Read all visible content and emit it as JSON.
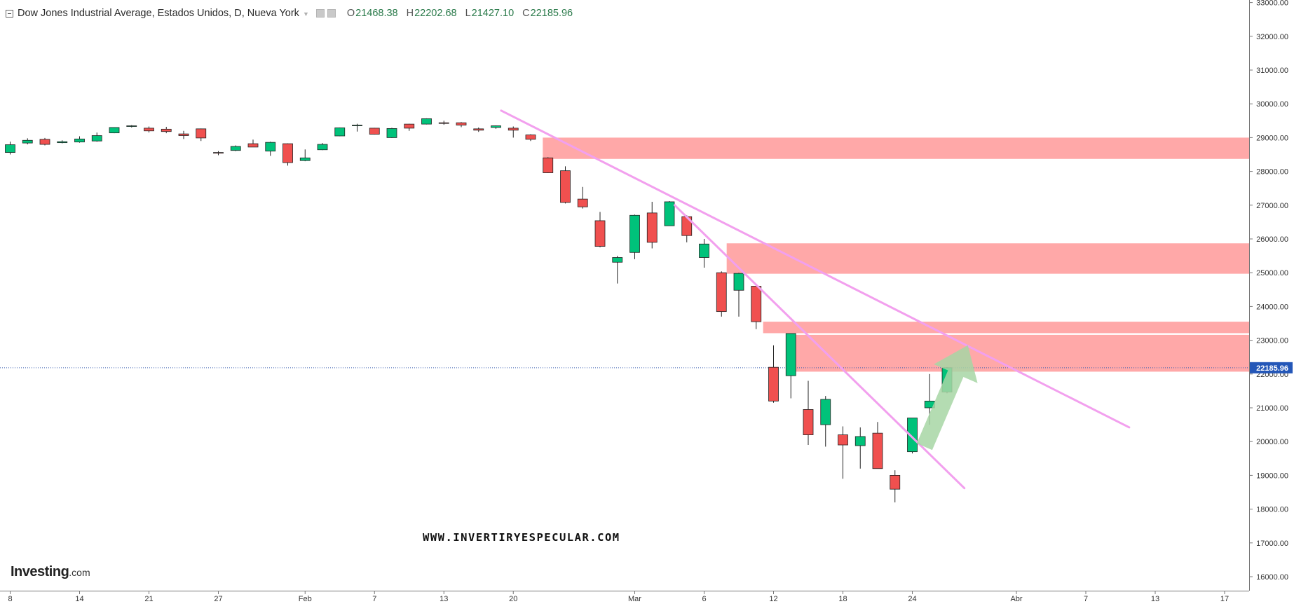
{
  "legend": {
    "title": "Dow Jones Industrial Average, Estados Unidos, D, Nueva York",
    "o_label": "O",
    "o_value": "21468.38",
    "h_label": "H",
    "h_value": "22202.68",
    "l_label": "L",
    "l_value": "21427.10",
    "c_label": "C",
    "c_value": "22185.96"
  },
  "watermark": "WWW.INVERTIRYESPECULAR.COM",
  "logo": {
    "main": "Investing",
    "sub": ".com"
  },
  "colors": {
    "up": "#00c27a",
    "down": "#f0504f",
    "zone": "#ffa8a8",
    "trendline": "#f2a0ee",
    "arrow": "#a7d6a4",
    "price_tag": "#2457b8",
    "price_line": "#3a5fb0"
  },
  "chart_data": {
    "type": "candlestick",
    "y_axis": {
      "min": 15700,
      "max": 33050,
      "position": "right",
      "ticks": [
        "16000.00",
        "17000.00",
        "18000.00",
        "19000.00",
        "20000.00",
        "21000.00",
        "22000.00",
        "23000.00",
        "24000.00",
        "25000.00",
        "26000.00",
        "27000.00",
        "28000.00",
        "29000.00",
        "30000.00",
        "31000.00",
        "32000.00",
        "33000.00"
      ]
    },
    "x_axis": {
      "labels": [
        {
          "label": "8",
          "bar": 0
        },
        {
          "label": "14",
          "bar": 4
        },
        {
          "label": "21",
          "bar": 8
        },
        {
          "label": "27",
          "bar": 12
        },
        {
          "label": "Feb",
          "bar": 17
        },
        {
          "label": "7",
          "bar": 21
        },
        {
          "label": "13",
          "bar": 25
        },
        {
          "label": "20",
          "bar": 29
        },
        {
          "label": "Mar",
          "bar": 36
        },
        {
          "label": "6",
          "bar": 40
        },
        {
          "label": "12",
          "bar": 44
        },
        {
          "label": "18",
          "bar": 48
        },
        {
          "label": "24",
          "bar": 52
        },
        {
          "label": "Abr",
          "bar": 58
        },
        {
          "label": "7",
          "bar": 62
        },
        {
          "label": "13",
          "bar": 66
        },
        {
          "label": "17",
          "bar": 70
        }
      ]
    },
    "candles": [
      {
        "o": 28560,
        "h": 28880,
        "l": 28500,
        "c": 28790
      },
      {
        "o": 28840,
        "h": 28980,
        "l": 28800,
        "c": 28920
      },
      {
        "o": 28950,
        "h": 28990,
        "l": 28770,
        "c": 28800
      },
      {
        "o": 28850,
        "h": 28920,
        "l": 28830,
        "c": 28880
      },
      {
        "o": 28870,
        "h": 29040,
        "l": 28850,
        "c": 28960
      },
      {
        "o": 28900,
        "h": 29150,
        "l": 28880,
        "c": 29060
      },
      {
        "o": 29140,
        "h": 29310,
        "l": 29130,
        "c": 29300
      },
      {
        "o": 29330,
        "h": 29370,
        "l": 29300,
        "c": 29350
      },
      {
        "o": 29280,
        "h": 29330,
        "l": 29150,
        "c": 29200
      },
      {
        "o": 29250,
        "h": 29320,
        "l": 29130,
        "c": 29180
      },
      {
        "o": 29110,
        "h": 29200,
        "l": 28960,
        "c": 29060
      },
      {
        "o": 29260,
        "h": 29270,
        "l": 28900,
        "c": 28990
      },
      {
        "o": 28560,
        "h": 28600,
        "l": 28480,
        "c": 28540
      },
      {
        "o": 28620,
        "h": 28770,
        "l": 28600,
        "c": 28740
      },
      {
        "o": 28820,
        "h": 28940,
        "l": 28720,
        "c": 28720
      },
      {
        "o": 28600,
        "h": 28880,
        "l": 28460,
        "c": 28860
      },
      {
        "o": 28820,
        "h": 28830,
        "l": 28170,
        "c": 28260
      },
      {
        "o": 28320,
        "h": 28650,
        "l": 28300,
        "c": 28400
      },
      {
        "o": 28640,
        "h": 28840,
        "l": 28630,
        "c": 28800
      },
      {
        "o": 29050,
        "h": 29300,
        "l": 29040,
        "c": 29290
      },
      {
        "o": 29360,
        "h": 29410,
        "l": 29180,
        "c": 29370
      },
      {
        "o": 29280,
        "h": 29290,
        "l": 29090,
        "c": 29100
      },
      {
        "o": 29000,
        "h": 29290,
        "l": 28990,
        "c": 29270
      },
      {
        "o": 29400,
        "h": 29410,
        "l": 29200,
        "c": 29280
      },
      {
        "o": 29400,
        "h": 29570,
        "l": 29390,
        "c": 29560
      },
      {
        "o": 29440,
        "h": 29500,
        "l": 29380,
        "c": 29420
      },
      {
        "o": 29440,
        "h": 29460,
        "l": 29310,
        "c": 29370
      },
      {
        "o": 29260,
        "h": 29300,
        "l": 29170,
        "c": 29220
      },
      {
        "o": 29300,
        "h": 29360,
        "l": 29260,
        "c": 29350
      },
      {
        "o": 29280,
        "h": 29330,
        "l": 29000,
        "c": 29220
      },
      {
        "o": 29080,
        "h": 29100,
        "l": 28900,
        "c": 28950
      },
      {
        "o": 28400,
        "h": 28420,
        "l": 27950,
        "c": 27960
      },
      {
        "o": 28020,
        "h": 28150,
        "l": 27050,
        "c": 27080
      },
      {
        "o": 27180,
        "h": 27540,
        "l": 26900,
        "c": 26950
      },
      {
        "o": 26540,
        "h": 26800,
        "l": 25750,
        "c": 25780
      },
      {
        "o": 25310,
        "h": 25500,
        "l": 24680,
        "c": 25450
      },
      {
        "o": 25600,
        "h": 26720,
        "l": 25400,
        "c": 26700
      },
      {
        "o": 26770,
        "h": 27100,
        "l": 25720,
        "c": 25900
      },
      {
        "o": 26390,
        "h": 27120,
        "l": 26390,
        "c": 27100
      },
      {
        "o": 26660,
        "h": 26700,
        "l": 25900,
        "c": 26100
      },
      {
        "o": 25450,
        "h": 26000,
        "l": 25150,
        "c": 25850
      },
      {
        "o": 25000,
        "h": 25040,
        "l": 23700,
        "c": 23850
      },
      {
        "o": 24480,
        "h": 25000,
        "l": 23700,
        "c": 24980
      },
      {
        "o": 24600,
        "h": 24600,
        "l": 23330,
        "c": 23550
      },
      {
        "o": 22200,
        "h": 22850,
        "l": 21150,
        "c": 21200
      },
      {
        "o": 21950,
        "h": 23200,
        "l": 21280,
        "c": 23200
      },
      {
        "o": 20950,
        "h": 21800,
        "l": 19900,
        "c": 20200
      },
      {
        "o": 20500,
        "h": 21350,
        "l": 19850,
        "c": 21250
      },
      {
        "o": 20200,
        "h": 20450,
        "l": 18900,
        "c": 19900
      },
      {
        "o": 19880,
        "h": 20420,
        "l": 19200,
        "c": 20150
      },
      {
        "o": 20250,
        "h": 20580,
        "l": 19200,
        "c": 19200
      },
      {
        "o": 19000,
        "h": 19150,
        "l": 18200,
        "c": 18590
      },
      {
        "o": 19700,
        "h": 20700,
        "l": 19650,
        "c": 20700
      },
      {
        "o": 21000,
        "h": 22000,
        "l": 20500,
        "c": 21200
      },
      {
        "o": 21468.38,
        "h": 22202.68,
        "l": 21427.1,
        "c": 22185.96
      }
    ],
    "zones": [
      {
        "from_bar": 30.7,
        "y_low": 28370,
        "y_high": 29000
      },
      {
        "from_bar": 41.3,
        "y_low": 24970,
        "y_high": 25870
      },
      {
        "from_bar": 43.4,
        "y_low": 23210,
        "y_high": 23550
      },
      {
        "from_bar": 44.9,
        "y_low": 22070,
        "y_high": 23160
      }
    ],
    "trendlines": [
      {
        "x1_bar": 28.3,
        "y1": 29800,
        "x2_bar": 64.5,
        "y2": 20420
      },
      {
        "x1_bar": 38.3,
        "y1": 27000,
        "x2_bar": 55.0,
        "y2": 18620
      }
    ],
    "arrow": {
      "tail_bar": 52.7,
      "tail_y": 19850,
      "head_bar": 55.2,
      "head_y": 22850
    },
    "current_price": {
      "value": 22185.96,
      "label": "22185.96"
    }
  }
}
